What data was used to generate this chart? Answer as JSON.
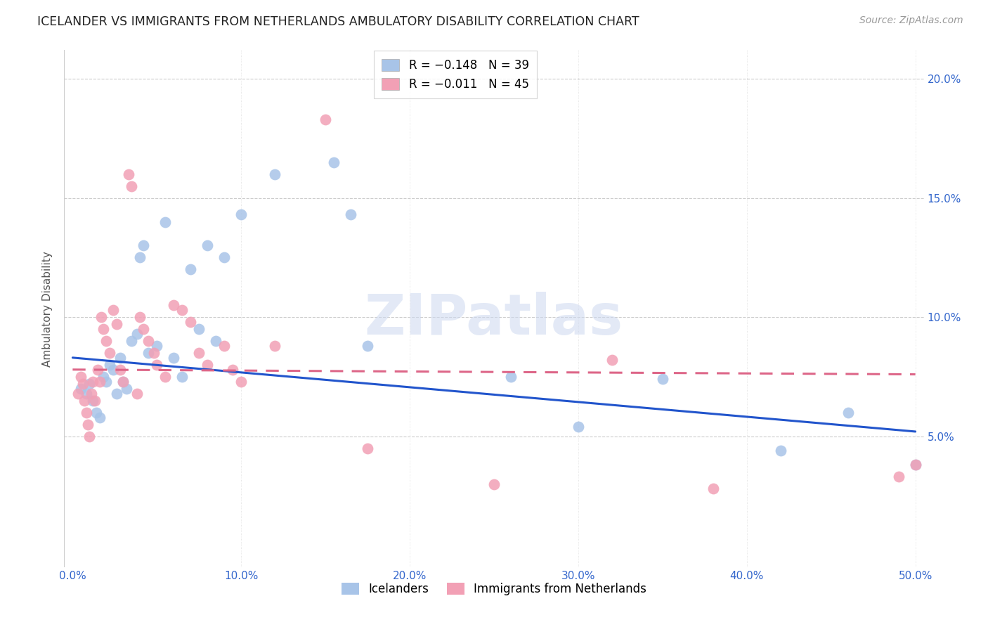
{
  "title": "ICELANDER VS IMMIGRANTS FROM NETHERLANDS AMBULATORY DISABILITY CORRELATION CHART",
  "source": "Source: ZipAtlas.com",
  "ylabel": "Ambulatory Disability",
  "xlim": [
    -0.005,
    0.505
  ],
  "ylim": [
    -0.005,
    0.212
  ],
  "xticks": [
    0.0,
    0.1,
    0.2,
    0.3,
    0.4,
    0.5
  ],
  "yticks": [
    0.05,
    0.1,
    0.15,
    0.2
  ],
  "xtick_labels": [
    "0.0%",
    "10.0%",
    "20.0%",
    "30.0%",
    "40.0%",
    "50.0%"
  ],
  "ytick_labels": [
    "5.0%",
    "10.0%",
    "15.0%",
    "20.0%"
  ],
  "legend_text1": "R = −0.148   N = 39",
  "legend_text2": "R = −0.011   N = 45",
  "legend_label1": "Icelanders",
  "legend_label2": "Immigrants from Netherlands",
  "color_blue": "#a8c4e8",
  "color_pink": "#f2a0b5",
  "trendline_blue": "#2255cc",
  "trendline_pink": "#dd6688",
  "watermark": "ZIPatlas",
  "icelanders_x": [
    0.005,
    0.008,
    0.01,
    0.012,
    0.014,
    0.016,
    0.018,
    0.02,
    0.022,
    0.024,
    0.026,
    0.028,
    0.03,
    0.032,
    0.035,
    0.038,
    0.04,
    0.042,
    0.045,
    0.05,
    0.055,
    0.06,
    0.065,
    0.07,
    0.075,
    0.08,
    0.085,
    0.09,
    0.1,
    0.12,
    0.155,
    0.165,
    0.175,
    0.26,
    0.3,
    0.35,
    0.42,
    0.46,
    0.5
  ],
  "icelanders_y": [
    0.07,
    0.068,
    0.072,
    0.065,
    0.06,
    0.058,
    0.075,
    0.073,
    0.08,
    0.078,
    0.068,
    0.083,
    0.073,
    0.07,
    0.09,
    0.093,
    0.125,
    0.13,
    0.085,
    0.088,
    0.14,
    0.083,
    0.075,
    0.12,
    0.095,
    0.13,
    0.09,
    0.125,
    0.143,
    0.16,
    0.165,
    0.143,
    0.088,
    0.075,
    0.054,
    0.074,
    0.044,
    0.06,
    0.038
  ],
  "netherlands_x": [
    0.003,
    0.005,
    0.006,
    0.007,
    0.008,
    0.009,
    0.01,
    0.011,
    0.012,
    0.013,
    0.015,
    0.016,
    0.017,
    0.018,
    0.02,
    0.022,
    0.024,
    0.026,
    0.028,
    0.03,
    0.033,
    0.035,
    0.038,
    0.04,
    0.042,
    0.045,
    0.048,
    0.05,
    0.055,
    0.06,
    0.065,
    0.07,
    0.075,
    0.08,
    0.09,
    0.095,
    0.1,
    0.12,
    0.15,
    0.175,
    0.25,
    0.32,
    0.38,
    0.49,
    0.5
  ],
  "netherlands_y": [
    0.068,
    0.075,
    0.072,
    0.065,
    0.06,
    0.055,
    0.05,
    0.068,
    0.073,
    0.065,
    0.078,
    0.073,
    0.1,
    0.095,
    0.09,
    0.085,
    0.103,
    0.097,
    0.078,
    0.073,
    0.16,
    0.155,
    0.068,
    0.1,
    0.095,
    0.09,
    0.085,
    0.08,
    0.075,
    0.105,
    0.103,
    0.098,
    0.085,
    0.08,
    0.088,
    0.078,
    0.073,
    0.088,
    0.183,
    0.045,
    0.03,
    0.082,
    0.028,
    0.033,
    0.038
  ],
  "blue_trend_x0": 0.0,
  "blue_trend_y0": 0.083,
  "blue_trend_x1": 0.5,
  "blue_trend_y1": 0.052,
  "pink_trend_x0": 0.0,
  "pink_trend_y0": 0.078,
  "pink_trend_x1": 0.5,
  "pink_trend_y1": 0.076
}
